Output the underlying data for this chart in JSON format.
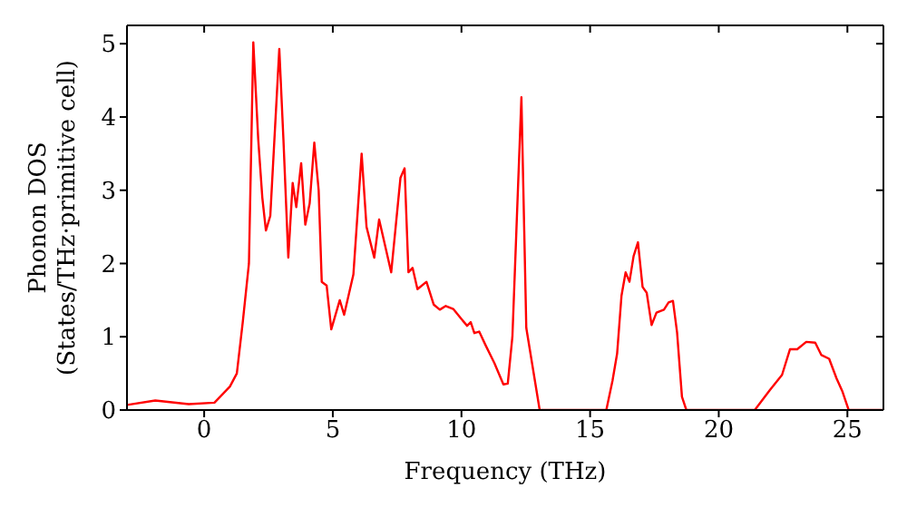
{
  "chart_data": {
    "type": "line",
    "xlabel": "Frequency (THz)",
    "ylabel": "Phonon DOS\n(States/THz·primitive cell)",
    "xlim": [
      -3,
      26.4
    ],
    "ylim": [
      0,
      5.25
    ],
    "xticks": [
      0,
      5,
      10,
      15,
      20,
      25
    ],
    "yticks": [
      0,
      1,
      2,
      3,
      4,
      5
    ],
    "marker": "none",
    "line_style": "solid",
    "series": [
      {
        "color": "#ff0000",
        "x": [
          -3,
          -1.9,
          -0.6,
          0.4,
          1.0,
          1.27,
          1.5,
          1.74,
          1.91,
          2.1,
          2.26,
          2.4,
          2.57,
          2.92,
          3.08,
          3.27,
          3.44,
          3.58,
          3.77,
          3.93,
          4.1,
          4.28,
          4.45,
          4.57,
          4.76,
          4.94,
          5.27,
          5.44,
          5.8,
          6.12,
          6.31,
          6.61,
          6.8,
          7.27,
          7.63,
          7.79,
          7.94,
          8.1,
          8.29,
          8.64,
          8.92,
          9.16,
          9.39,
          9.68,
          9.98,
          10.22,
          10.36,
          10.5,
          10.69,
          10.93,
          11.28,
          11.63,
          11.8,
          11.98,
          12.33,
          12.52,
          13.04,
          15.63,
          15.87,
          16.05,
          16.22,
          16.38,
          16.53,
          16.69,
          16.86,
          17.04,
          17.2,
          17.39,
          17.58,
          17.87,
          18.05,
          18.22,
          18.38,
          18.57,
          18.74,
          21.4,
          21.98,
          22.46,
          22.77,
          23.05,
          23.4,
          23.75,
          23.99,
          24.29,
          24.58,
          24.81,
          25.05,
          26.4
        ],
        "values": [
          0.07,
          0.13,
          0.08,
          0.1,
          0.32,
          0.5,
          1.2,
          2.0,
          5.02,
          3.7,
          2.9,
          2.45,
          2.65,
          4.93,
          3.7,
          2.08,
          3.1,
          2.77,
          3.37,
          2.53,
          2.82,
          3.65,
          3.0,
          1.75,
          1.7,
          1.1,
          1.5,
          1.3,
          1.85,
          3.5,
          2.5,
          2.08,
          2.6,
          1.88,
          3.17,
          3.3,
          1.88,
          1.94,
          1.65,
          1.75,
          1.44,
          1.37,
          1.42,
          1.38,
          1.25,
          1.15,
          1.2,
          1.05,
          1.07,
          0.89,
          0.64,
          0.35,
          0.36,
          1.0,
          4.27,
          1.12,
          0,
          0,
          0.4,
          0.77,
          1.56,
          1.88,
          1.75,
          2.1,
          2.29,
          1.68,
          1.6,
          1.16,
          1.33,
          1.37,
          1.47,
          1.49,
          1.06,
          0.18,
          0,
          0,
          0.27,
          0.48,
          0.83,
          0.83,
          0.93,
          0.92,
          0.75,
          0.7,
          0.43,
          0.25,
          0,
          0
        ]
      }
    ]
  }
}
